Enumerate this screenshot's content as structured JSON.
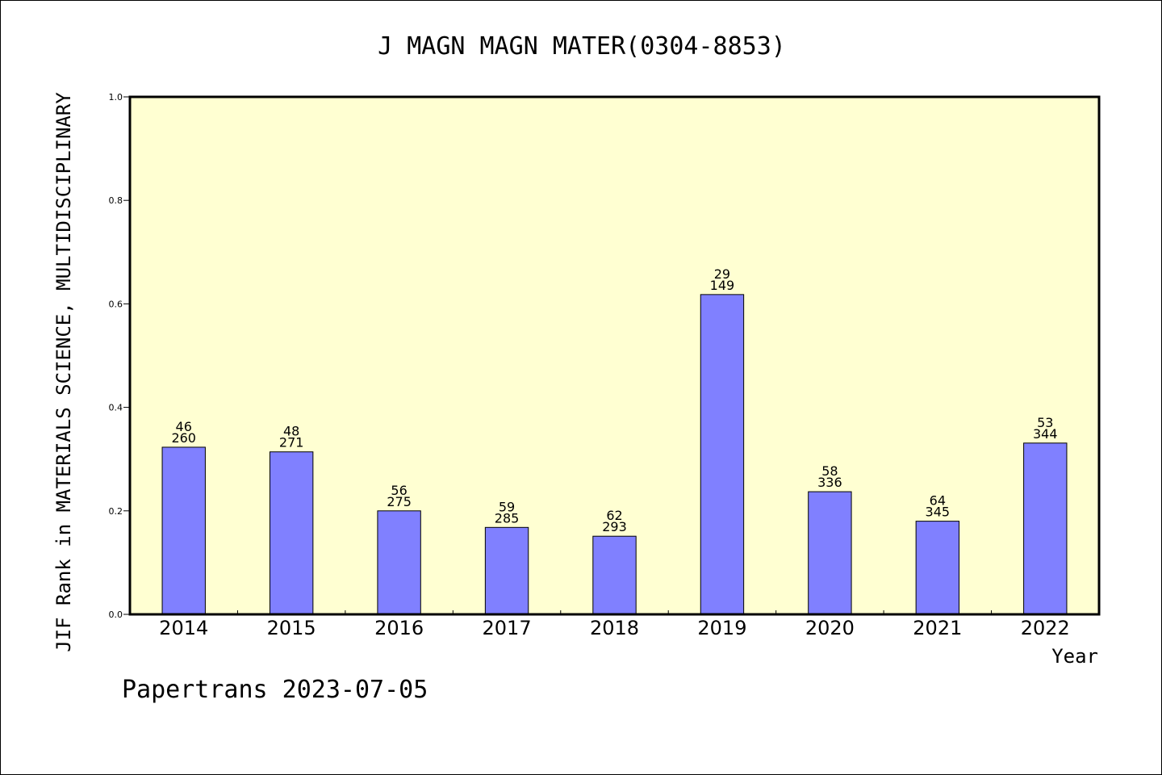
{
  "chart_data": {
    "type": "bar",
    "title": "J MAGN MAGN MATER(0304-8853)",
    "xlabel": "Year",
    "ylabel": "JIF Rank in MATERIALS SCIENCE, MULTIDISCIPLINARY",
    "categories": [
      "2014",
      "2015",
      "2016",
      "2017",
      "2018",
      "2019",
      "2020",
      "2021",
      "2022"
    ],
    "values": [
      0.323,
      0.314,
      0.2,
      0.168,
      0.151,
      0.618,
      0.237,
      0.18,
      0.331
    ],
    "ranks": [
      "46",
      "48",
      "56",
      "59",
      "62",
      "29",
      "58",
      "64",
      "53"
    ],
    "totals": [
      "260",
      "271",
      "275",
      "285",
      "293",
      "149",
      "336",
      "345",
      "344"
    ],
    "ylim": [
      0,
      1.0
    ],
    "yticks": [
      "0.0",
      "0.2",
      "0.4",
      "0.6",
      "0.8",
      "1.0"
    ],
    "colors": {
      "plot_background": "#ffffd2",
      "bar_fill": "#8080ff",
      "bar_stroke": "#000000"
    },
    "footer": "Papertrans 2023-07-05"
  }
}
